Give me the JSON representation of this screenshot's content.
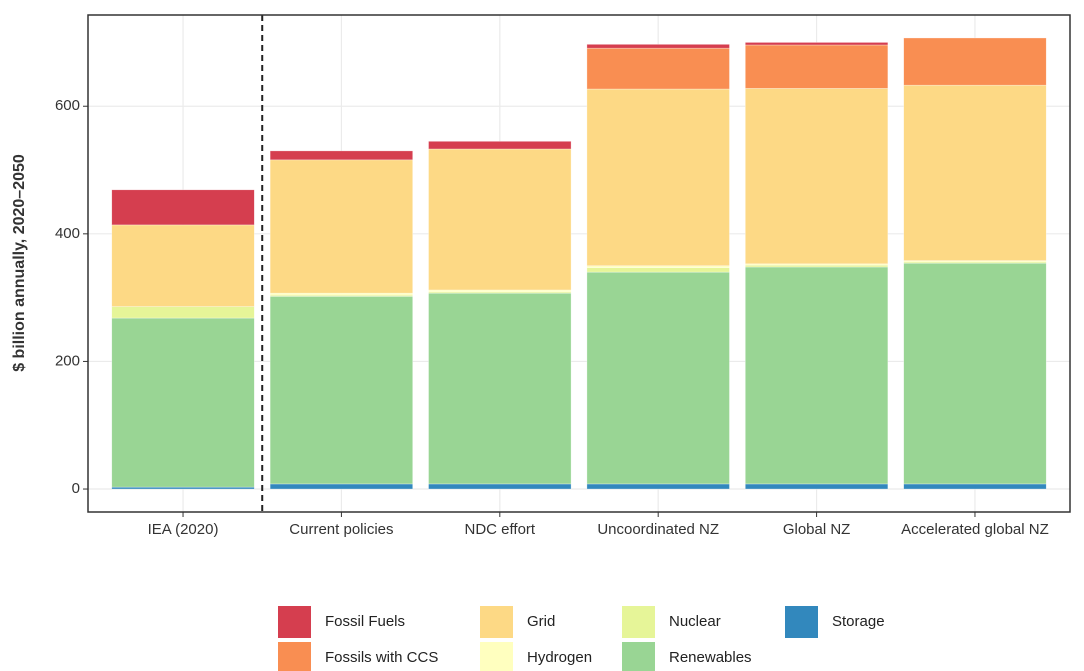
{
  "chart_data": {
    "type": "stacked-bar",
    "y_label": "$ billion annually, 2020–2050",
    "categories": [
      "IEA (2020)",
      "Current policies",
      "NDC effort",
      "Uncoordinated NZ",
      "Global NZ",
      "Accelerated global NZ"
    ],
    "series": [
      {
        "name": "Fossil Fuels",
        "color": "#d53e4f",
        "values": [
          55,
          14,
          12,
          6,
          4,
          0
        ]
      },
      {
        "name": "Fossils with CCS",
        "color": "#f98e52",
        "values": [
          0,
          0,
          0,
          64,
          68,
          74
        ]
      },
      {
        "name": "Grid",
        "color": "#fdd985",
        "values": [
          128,
          209,
          221,
          277,
          275,
          275
        ]
      },
      {
        "name": "Hydrogen",
        "color": "#ffffbf",
        "values": [
          0,
          3,
          3,
          3,
          2,
          2
        ]
      },
      {
        "name": "Nuclear",
        "color": "#e6f598",
        "values": [
          18,
          2,
          2,
          7,
          3,
          2
        ]
      },
      {
        "name": "Renewables",
        "color": "#99d594",
        "values": [
          265,
          294,
          299,
          332,
          340,
          346
        ]
      },
      {
        "name": "Storage",
        "color": "#3288bd",
        "values": [
          3,
          8,
          8,
          8,
          8,
          8
        ]
      }
    ],
    "ylim": [
      -36,
      743
    ],
    "yticks": [
      0,
      200,
      400,
      600
    ],
    "grid": true
  }
}
